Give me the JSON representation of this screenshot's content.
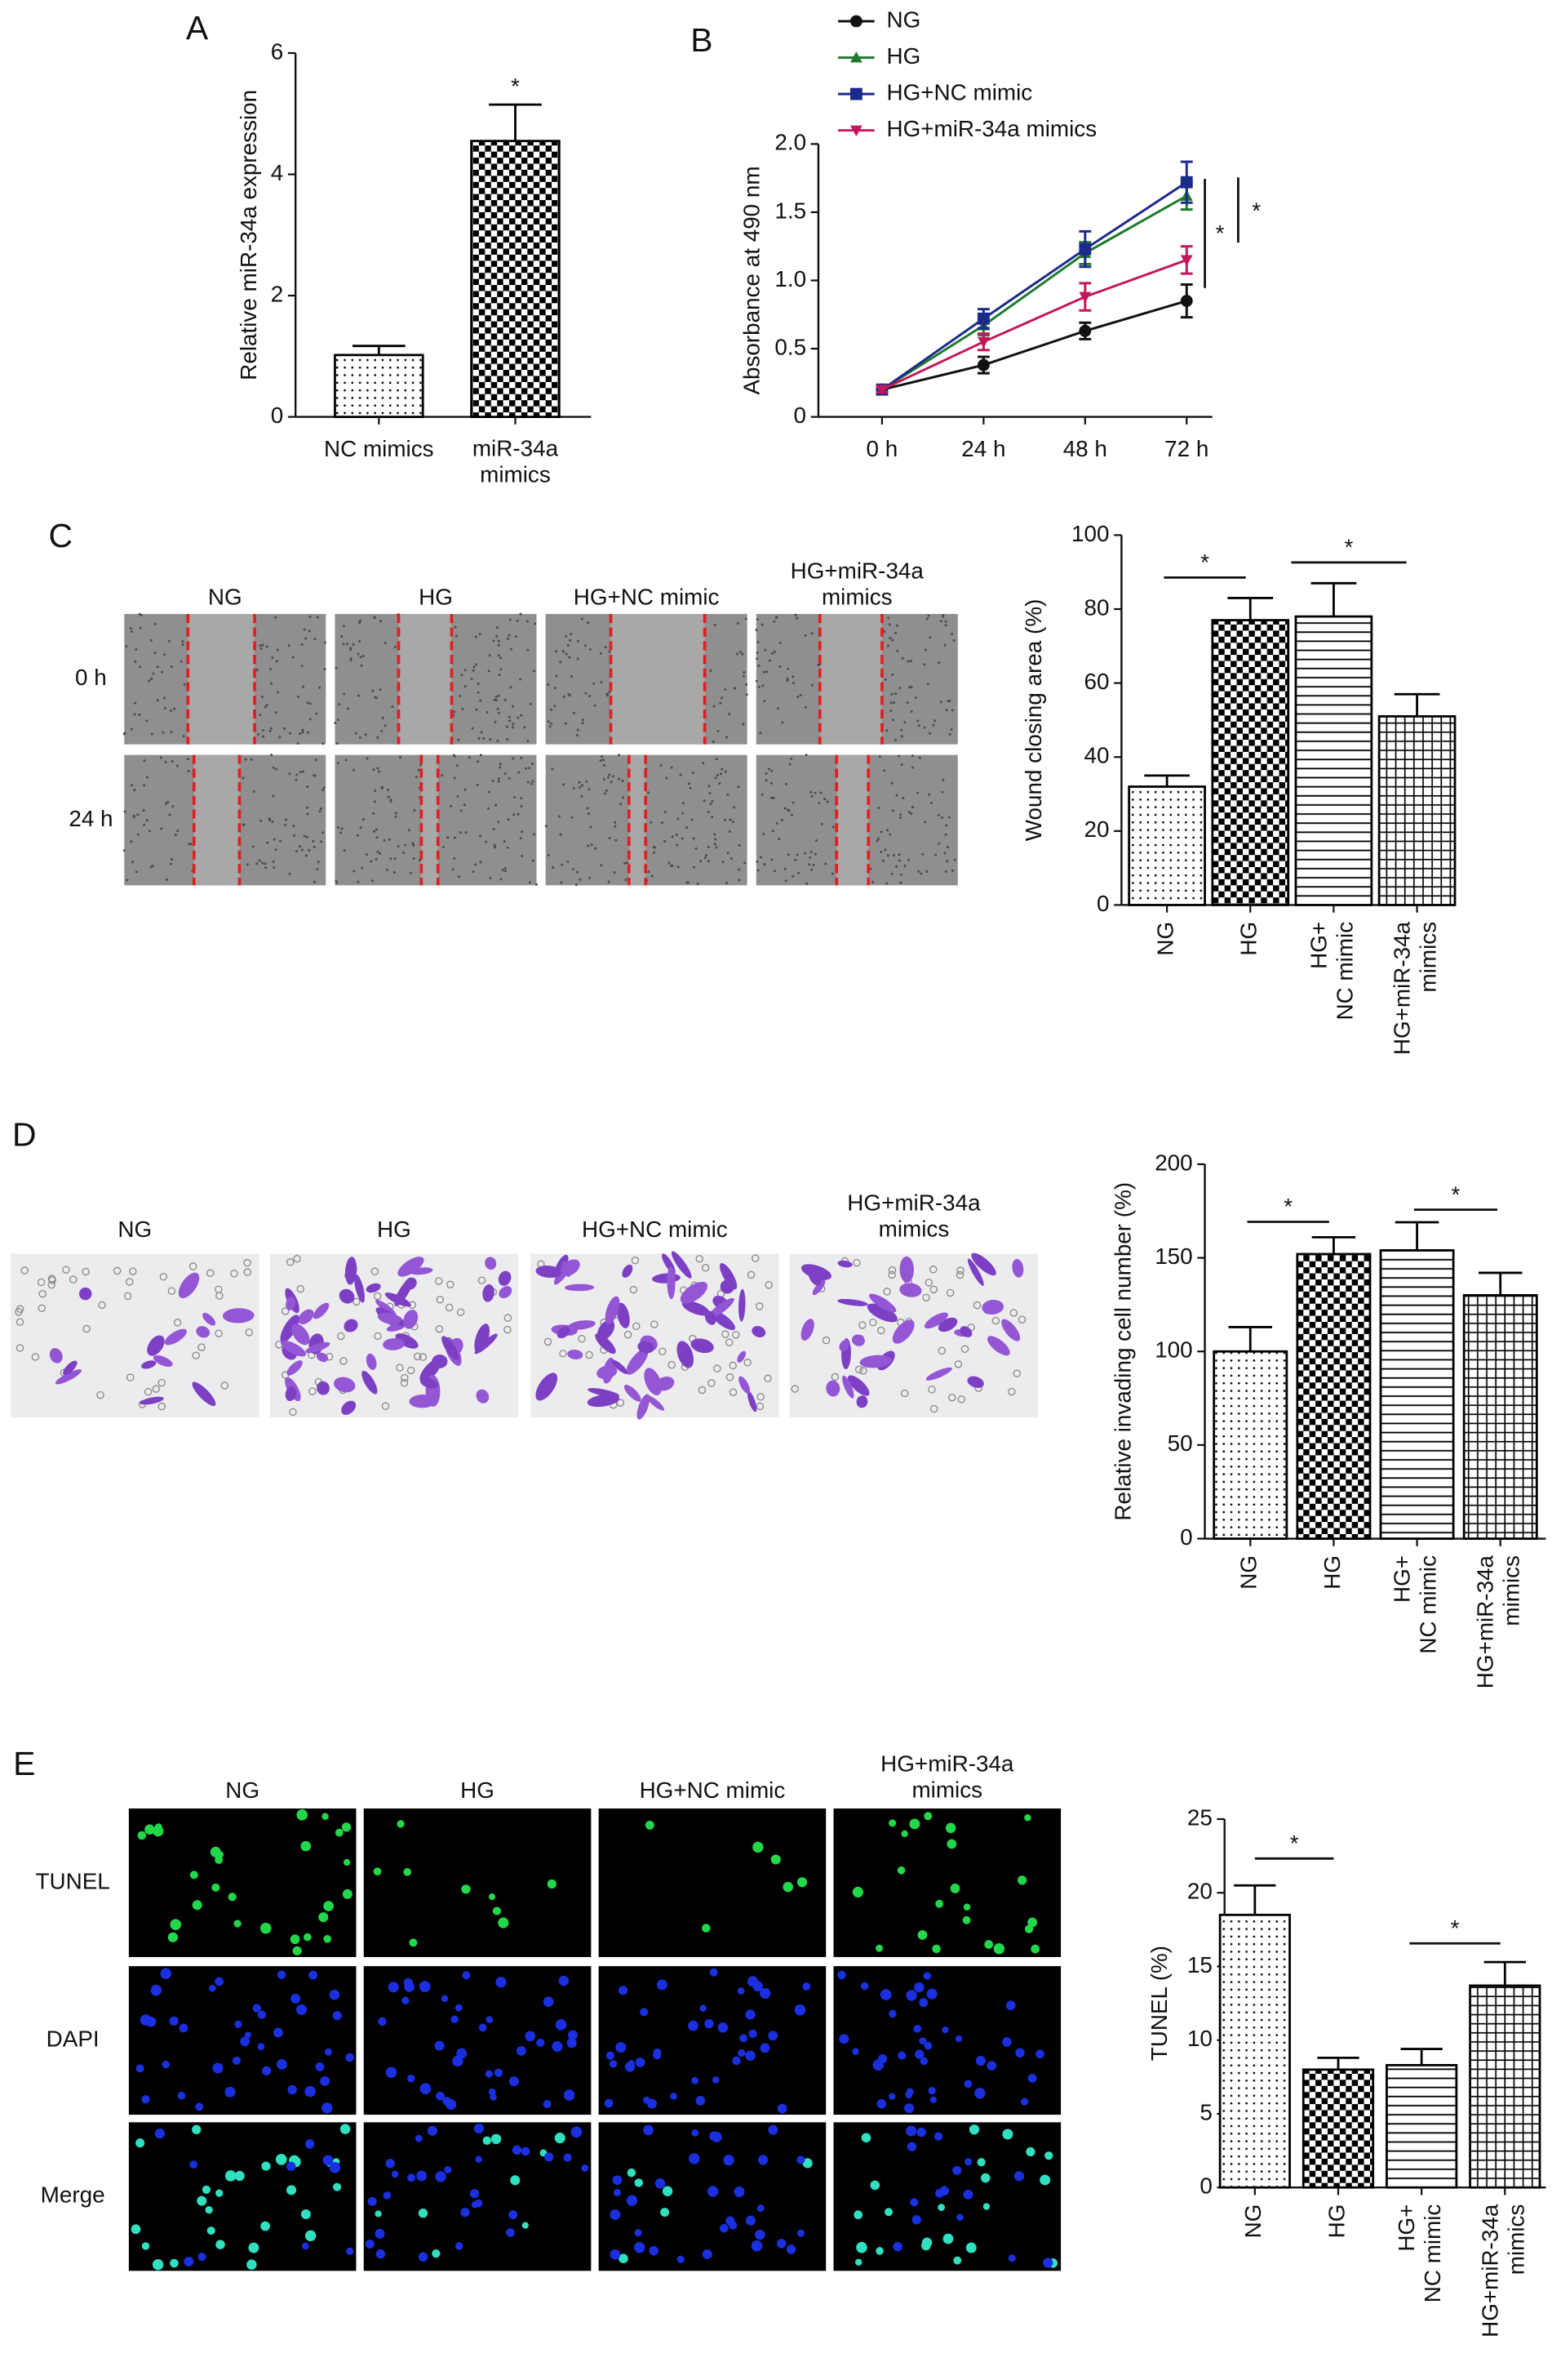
{
  "chart_data": [
    {
      "panel": "A",
      "type": "bar",
      "categories": [
        "NC mimics",
        "miR-34a\nmimics"
      ],
      "values": [
        1.02,
        4.55
      ],
      "errors": [
        0.15,
        0.6
      ],
      "patterns": [
        "dots",
        "checker"
      ],
      "color": "#000000",
      "ylabel": "Relative miR-34a expression",
      "ylim": [
        0,
        6
      ],
      "yticks": [
        0,
        2,
        4,
        6
      ],
      "annotations": [
        "*"
      ]
    },
    {
      "panel": "B",
      "type": "line",
      "categories": [
        "0 h",
        "24 h",
        "48 h",
        "72 h"
      ],
      "series": [
        {
          "name": "NG",
          "color": "#111111",
          "marker": "circle",
          "values": [
            0.2,
            0.38,
            0.63,
            0.85
          ],
          "errors": [
            0.02,
            0.06,
            0.06,
            0.12
          ]
        },
        {
          "name": "HG",
          "color": "#1d7a2a",
          "marker": "triangle",
          "values": [
            0.2,
            0.67,
            1.2,
            1.62
          ],
          "errors": [
            0.02,
            0.07,
            0.08,
            0.1
          ]
        },
        {
          "name": "HG+NC mimic",
          "color": "#1c2a8c",
          "marker": "square",
          "values": [
            0.2,
            0.72,
            1.23,
            1.72
          ],
          "errors": [
            0.02,
            0.07,
            0.13,
            0.15
          ]
        },
        {
          "name": "HG+miR-34a mimics",
          "color": "#c2185b",
          "marker": "down-triangle",
          "values": [
            0.2,
            0.55,
            0.88,
            1.15
          ],
          "errors": [
            0.02,
            0.06,
            0.1,
            0.1
          ]
        }
      ],
      "ylabel": "Absorbance at 490 nm",
      "ylim": [
        0,
        2
      ],
      "yticks": [
        0,
        0.5,
        {
          "value": 1,
          "label": "1.0"
        },
        1.5,
        {
          "value": 2,
          "label": "2.0"
        }
      ],
      "annotations": [
        "*",
        "*"
      ]
    },
    {
      "type": "bar",
      "categories": [
        "NG",
        "HG",
        "HG+\nNC mimic",
        "HG+miR-34a\nmimics"
      ],
      "values": [
        32,
        77,
        78,
        51
      ],
      "errors": [
        3,
        6,
        9,
        6
      ],
      "patterns": [
        "dots",
        "checker",
        "hlines",
        "grid"
      ],
      "color": "#000000",
      "ylabel": "Wound closing area (%)",
      "ylim": [
        0,
        100
      ],
      "yticks": [
        0,
        20,
        40,
        60,
        80,
        100
      ],
      "annotations": [
        "*",
        "*"
      ]
    },
    {
      "type": "bar",
      "categories": [
        "NG",
        "HG",
        "HG+\nNC mimic",
        "HG+miR-34a\nmimics"
      ],
      "values": [
        100,
        152,
        154,
        130
      ],
      "errors": [
        13,
        9,
        15,
        12
      ],
      "patterns": [
        "dots",
        "checker",
        "hlines",
        "grid"
      ],
      "color": "#000000",
      "ylabel": "Relative invading cell number (%)",
      "ylim": [
        0,
        200
      ],
      "yticks": [
        0,
        50,
        100,
        150,
        200
      ],
      "annotations": [
        "*",
        "*"
      ]
    },
    {
      "type": "bar",
      "categories": [
        "NG",
        "HG",
        "HG+\nNC mimic",
        "HG+miR-34a\nmimics"
      ],
      "values": [
        18.5,
        8.0,
        8.3,
        13.7
      ],
      "errors": [
        2,
        0.8,
        1.1,
        1.6
      ],
      "patterns": [
        "dots",
        "checker",
        "hlines",
        "grid"
      ],
      "color": "#000000",
      "ylabel": "TUNEL (%)",
      "ylim": [
        0,
        25
      ],
      "yticks": [
        0,
        5,
        10,
        15,
        20,
        25
      ],
      "annotations": [
        "*",
        "*"
      ]
    }
  ],
  "image_panels": [
    {
      "panel": "C",
      "columns": [
        "NG",
        "HG",
        "HG+NC mimic",
        "HG+miR-34a\nmimics"
      ],
      "rows": [
        "0 h",
        "24 h"
      ]
    },
    {
      "panel": "D",
      "columns": [
        "NG",
        "HG",
        "HG+NC mimic",
        "HG+miR-34a\nmimics"
      ]
    },
    {
      "panel": "E",
      "columns": [
        "NG",
        "HG",
        "HG+NC mimic",
        "HG+miR-34a\nmimics"
      ],
      "rows": [
        "TUNEL",
        "DAPI",
        "Merge"
      ]
    }
  ]
}
